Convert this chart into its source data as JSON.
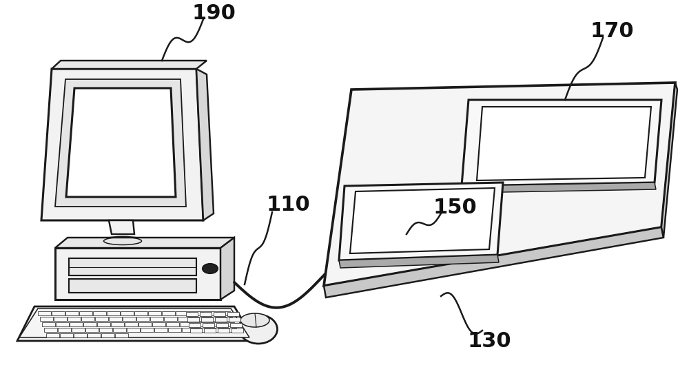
{
  "bg_color": "#ffffff",
  "label_190": "190",
  "label_110": "110",
  "label_130": "130",
  "label_150": "150",
  "label_170": "170",
  "line_color": "#1a1a1a",
  "fill_light": "#f2f2f2",
  "fill_white": "#ffffff",
  "fill_gray": "#e0e0e0",
  "fill_dark": "#333333",
  "line_width": 2.2,
  "fig_width": 10.0,
  "fig_height": 5.3,
  "dpi": 100
}
